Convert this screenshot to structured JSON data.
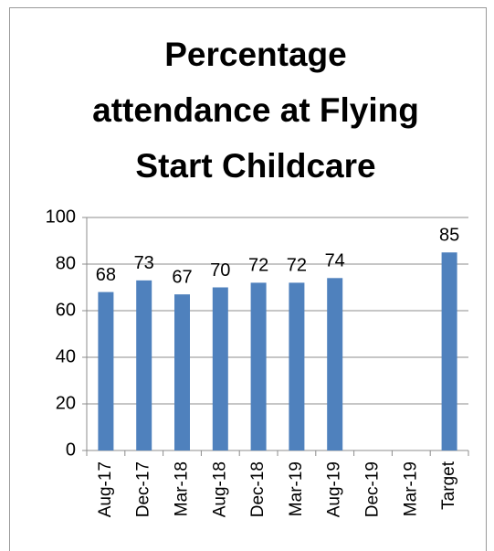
{
  "chart_data": {
    "type": "bar",
    "title": [
      "Percentage",
      "attendance at Flying",
      "Start Childcare"
    ],
    "categories": [
      "Aug-17",
      "Dec-17",
      "Mar-18",
      "Aug-18",
      "Dec-18",
      "Mar-19",
      "Aug-19",
      "Dec-19",
      "Mar-19",
      "Target"
    ],
    "values": [
      68,
      73,
      67,
      70,
      72,
      72,
      74,
      null,
      null,
      85
    ],
    "color": "#4f81bd",
    "ylim": [
      0,
      100
    ],
    "yticks": [
      0,
      20,
      40,
      60,
      80,
      100
    ],
    "grid": true,
    "data_labels": true
  }
}
